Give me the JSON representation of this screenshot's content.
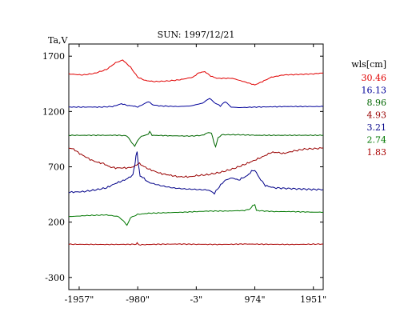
{
  "chart_data": {
    "type": "line",
    "title": "SUN: 1997/12/21",
    "ylabel": "Ta,V",
    "xlabel": "",
    "xlim": [
      -2130,
      2115
    ],
    "ylim": [
      -410,
      1810
    ],
    "grid": false,
    "x_ticks": [
      {
        "value": -1957,
        "label": "-1957\""
      },
      {
        "value": -980,
        "label": "-980\""
      },
      {
        "value": -3,
        "label": "-3\""
      },
      {
        "value": 974,
        "label": "974\""
      },
      {
        "value": 1951,
        "label": "1951\""
      }
    ],
    "y_ticks": [
      {
        "value": 1700,
        "label": "1700"
      },
      {
        "value": 1200,
        "label": "1200"
      },
      {
        "value": 700,
        "label": "700"
      },
      {
        "value": 200,
        "label": "200"
      },
      {
        "value": -300,
        "label": "-300"
      }
    ],
    "legend": {
      "title": "wls[cm]",
      "placement": "right"
    },
    "series": [
      {
        "name": "30.46",
        "color": "#e00000",
        "points": [
          [
            -2130,
            1540
          ],
          [
            -1900,
            1530
          ],
          [
            -1700,
            1545
          ],
          [
            -1500,
            1580
          ],
          [
            -1350,
            1640
          ],
          [
            -1230,
            1665
          ],
          [
            -1100,
            1600
          ],
          [
            -980,
            1510
          ],
          [
            -850,
            1480
          ],
          [
            -700,
            1470
          ],
          [
            -500,
            1475
          ],
          [
            -300,
            1485
          ],
          [
            -150,
            1500
          ],
          [
            -60,
            1510
          ],
          [
            40,
            1550
          ],
          [
            140,
            1560
          ],
          [
            240,
            1520
          ],
          [
            340,
            1500
          ],
          [
            600,
            1500
          ],
          [
            850,
            1460
          ],
          [
            974,
            1440
          ],
          [
            1100,
            1470
          ],
          [
            1250,
            1510
          ],
          [
            1450,
            1530
          ],
          [
            1700,
            1535
          ],
          [
            1951,
            1540
          ],
          [
            2115,
            1548
          ]
        ]
      },
      {
        "name": "16.13",
        "color": "#000099",
        "points": [
          [
            -2130,
            1240
          ],
          [
            -1600,
            1240
          ],
          [
            -1400,
            1245
          ],
          [
            -1250,
            1270
          ],
          [
            -1150,
            1255
          ],
          [
            -1050,
            1250
          ],
          [
            -980,
            1240
          ],
          [
            -870,
            1270
          ],
          [
            -800,
            1290
          ],
          [
            -730,
            1260
          ],
          [
            -600,
            1250
          ],
          [
            -300,
            1245
          ],
          [
            -100,
            1250
          ],
          [
            100,
            1275
          ],
          [
            220,
            1320
          ],
          [
            300,
            1280
          ],
          [
            400,
            1250
          ],
          [
            480,
            1290
          ],
          [
            580,
            1240
          ],
          [
            700,
            1235
          ],
          [
            1000,
            1240
          ],
          [
            1500,
            1245
          ],
          [
            2115,
            1245
          ]
        ]
      },
      {
        "name": "8.96",
        "color": "#006600",
        "points": [
          [
            -2130,
            985
          ],
          [
            -1300,
            985
          ],
          [
            -1160,
            980
          ],
          [
            -1080,
            920
          ],
          [
            -1030,
            885
          ],
          [
            -980,
            940
          ],
          [
            -920,
            975
          ],
          [
            -800,
            995
          ],
          [
            -780,
            1020
          ],
          [
            -740,
            985
          ],
          [
            -400,
            980
          ],
          [
            -100,
            978
          ],
          [
            100,
            985
          ],
          [
            200,
            1010
          ],
          [
            250,
            1005
          ],
          [
            290,
            925
          ],
          [
            320,
            880
          ],
          [
            360,
            960
          ],
          [
            420,
            990
          ],
          [
            700,
            990
          ],
          [
            1000,
            985
          ],
          [
            2115,
            985
          ]
        ]
      },
      {
        "name": "4.93",
        "color": "#990000",
        "points": [
          [
            -2130,
            870
          ],
          [
            -2050,
            860
          ],
          [
            -1950,
            820
          ],
          [
            -1850,
            790
          ],
          [
            -1750,
            760
          ],
          [
            -1650,
            740
          ],
          [
            -1550,
            730
          ],
          [
            -1450,
            700
          ],
          [
            -1350,
            690
          ],
          [
            -1250,
            690
          ],
          [
            -1150,
            690
          ],
          [
            -1050,
            700
          ],
          [
            -1000,
            720
          ],
          [
            -950,
            730
          ],
          [
            -900,
            710
          ],
          [
            -800,
            680
          ],
          [
            -700,
            660
          ],
          [
            -600,
            640
          ],
          [
            -500,
            630
          ],
          [
            -400,
            620
          ],
          [
            -300,
            610
          ],
          [
            -200,
            610
          ],
          [
            -100,
            610
          ],
          [
            0,
            620
          ],
          [
            200,
            630
          ],
          [
            400,
            650
          ],
          [
            600,
            680
          ],
          [
            800,
            720
          ],
          [
            974,
            760
          ],
          [
            1100,
            790
          ],
          [
            1250,
            830
          ],
          [
            1350,
            830
          ],
          [
            1450,
            820
          ],
          [
            1600,
            840
          ],
          [
            1800,
            860
          ],
          [
            2000,
            865
          ],
          [
            2115,
            870
          ]
        ]
      },
      {
        "name": "3.21",
        "color": "#000088",
        "points": [
          [
            -2130,
            470
          ],
          [
            -1900,
            475
          ],
          [
            -1700,
            490
          ],
          [
            -1500,
            510
          ],
          [
            -1350,
            550
          ],
          [
            -1200,
            580
          ],
          [
            -1100,
            610
          ],
          [
            -1060,
            630
          ],
          [
            -1030,
            710
          ],
          [
            -1010,
            800
          ],
          [
            -990,
            840
          ],
          [
            -970,
            720
          ],
          [
            -940,
            620
          ],
          [
            -900,
            605
          ],
          [
            -800,
            560
          ],
          [
            -600,
            530
          ],
          [
            -400,
            510
          ],
          [
            -200,
            500
          ],
          [
            0,
            495
          ],
          [
            200,
            490
          ],
          [
            300,
            460
          ],
          [
            380,
            520
          ],
          [
            480,
            580
          ],
          [
            600,
            600
          ],
          [
            700,
            580
          ],
          [
            850,
            620
          ],
          [
            920,
            660
          ],
          [
            974,
            670
          ],
          [
            1050,
            600
          ],
          [
            1150,
            530
          ],
          [
            1300,
            510
          ],
          [
            1500,
            505
          ],
          [
            1700,
            500
          ],
          [
            1951,
            495
          ],
          [
            2115,
            495
          ]
        ]
      },
      {
        "name": "2.74",
        "color": "#007700",
        "points": [
          [
            -2130,
            250
          ],
          [
            -1800,
            260
          ],
          [
            -1500,
            265
          ],
          [
            -1300,
            250
          ],
          [
            -1200,
            200
          ],
          [
            -1160,
            170
          ],
          [
            -1100,
            240
          ],
          [
            -980,
            270
          ],
          [
            -800,
            280
          ],
          [
            -500,
            285
          ],
          [
            -200,
            290
          ],
          [
            200,
            300
          ],
          [
            500,
            300
          ],
          [
            800,
            305
          ],
          [
            900,
            320
          ],
          [
            940,
            350
          ],
          [
            974,
            360
          ],
          [
            1000,
            305
          ],
          [
            1300,
            295
          ],
          [
            1600,
            295
          ],
          [
            1951,
            290
          ],
          [
            2115,
            290
          ]
        ]
      },
      {
        "name": "1.83",
        "color": "#aa0000",
        "points": [
          [
            -2130,
            0
          ],
          [
            -1500,
            -2
          ],
          [
            -1000,
            0
          ],
          [
            -990,
            12
          ],
          [
            -960,
            -5
          ],
          [
            -700,
            0
          ],
          [
            -300,
            2
          ],
          [
            0,
            0
          ],
          [
            400,
            -2
          ],
          [
            800,
            2
          ],
          [
            1200,
            0
          ],
          [
            1600,
            -2
          ],
          [
            2115,
            2
          ]
        ]
      }
    ]
  }
}
